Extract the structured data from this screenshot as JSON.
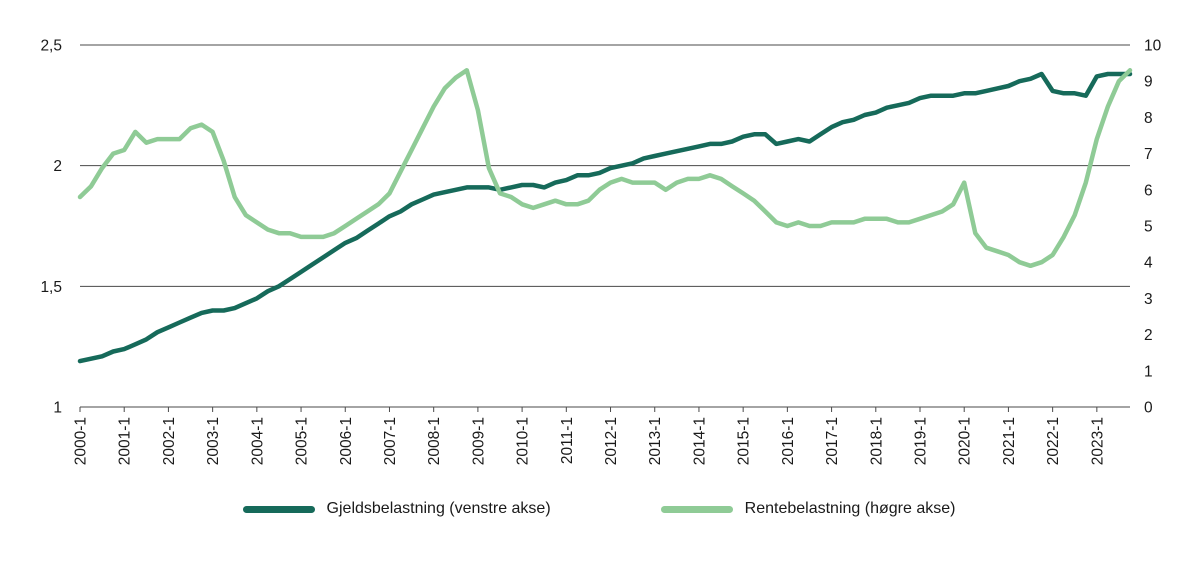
{
  "chart_data": {
    "type": "line",
    "title": "",
    "xlabel": "",
    "ylabel_left": "",
    "ylabel_right": "",
    "grid": "horizontal",
    "legend_position": "bottom-center",
    "text_color": "#1a1a1a",
    "grid_color": "#4a4a4a",
    "left_axis": {
      "range": [
        1,
        2.5
      ],
      "ticks": [
        {
          "value": 2.5,
          "label": "2,5"
        },
        {
          "value": 2.0,
          "label": "2"
        },
        {
          "value": 1.5,
          "label": "1,5"
        },
        {
          "value": 1.0,
          "label": "1"
        }
      ]
    },
    "right_axis": {
      "range": [
        0,
        10
      ],
      "ticks": [
        {
          "value": 10,
          "label": "10"
        },
        {
          "value": 9,
          "label": "9"
        },
        {
          "value": 8,
          "label": "8"
        },
        {
          "value": 7,
          "label": "7"
        },
        {
          "value": 6,
          "label": "6"
        },
        {
          "value": 5,
          "label": "5"
        },
        {
          "value": 4,
          "label": "4"
        },
        {
          "value": 3,
          "label": "3"
        },
        {
          "value": 2,
          "label": "2"
        },
        {
          "value": 1,
          "label": "1"
        },
        {
          "value": 0,
          "label": "0"
        }
      ]
    },
    "x_tick_labels": [
      "2000-1",
      "2001-1",
      "2002-1",
      "2003-1",
      "2004-1",
      "2005-1",
      "2006-1",
      "2007-1",
      "2008-1",
      "2009-1",
      "2010-1",
      "2011-1",
      "2012-1",
      "2013-1",
      "2014-1",
      "2015-1",
      "2016-1",
      "2017-1",
      "2018-1",
      "2019-1",
      "2020-1",
      "2021-1",
      "2022-1",
      "2023-1"
    ],
    "x_ticks_every_n_points": 4,
    "series": [
      {
        "name": "Gjeldsbelastning",
        "legend_label": "Gjeldsbelastning (venstre akse)",
        "axis": "left",
        "color": "#166a5a",
        "values": [
          1.19,
          1.2,
          1.21,
          1.23,
          1.24,
          1.26,
          1.28,
          1.31,
          1.33,
          1.35,
          1.37,
          1.39,
          1.4,
          1.4,
          1.41,
          1.43,
          1.45,
          1.48,
          1.5,
          1.53,
          1.56,
          1.59,
          1.62,
          1.65,
          1.68,
          1.7,
          1.73,
          1.76,
          1.79,
          1.81,
          1.84,
          1.86,
          1.88,
          1.89,
          1.9,
          1.91,
          1.91,
          1.91,
          1.9,
          1.91,
          1.92,
          1.92,
          1.91,
          1.93,
          1.94,
          1.96,
          1.96,
          1.97,
          1.99,
          2.0,
          2.01,
          2.03,
          2.04,
          2.05,
          2.06,
          2.07,
          2.08,
          2.09,
          2.09,
          2.1,
          2.12,
          2.13,
          2.13,
          2.09,
          2.1,
          2.11,
          2.1,
          2.13,
          2.16,
          2.18,
          2.19,
          2.21,
          2.22,
          2.24,
          2.25,
          2.26,
          2.28,
          2.29,
          2.29,
          2.29,
          2.3,
          2.3,
          2.31,
          2.32,
          2.33,
          2.35,
          2.36,
          2.38,
          2.31,
          2.3,
          2.3,
          2.29,
          2.37,
          2.38,
          2.38,
          2.38
        ]
      },
      {
        "name": "Rentebelastning",
        "legend_label": "Rentebelastning (høgre akse)",
        "axis": "right",
        "color": "#8fcb96",
        "values": [
          5.8,
          6.1,
          6.6,
          7.0,
          7.1,
          7.6,
          7.3,
          7.4,
          7.4,
          7.4,
          7.7,
          7.8,
          7.6,
          6.8,
          5.8,
          5.3,
          5.1,
          4.9,
          4.8,
          4.8,
          4.7,
          4.7,
          4.7,
          4.8,
          5.0,
          5.2,
          5.4,
          5.6,
          5.9,
          6.5,
          7.1,
          7.7,
          8.3,
          8.8,
          9.1,
          9.3,
          8.2,
          6.6,
          5.9,
          5.8,
          5.6,
          5.5,
          5.6,
          5.7,
          5.6,
          5.6,
          5.7,
          6.0,
          6.2,
          6.3,
          6.2,
          6.2,
          6.2,
          6.0,
          6.2,
          6.3,
          6.3,
          6.4,
          6.3,
          6.1,
          5.9,
          5.7,
          5.4,
          5.1,
          5.0,
          5.1,
          5.0,
          5.0,
          5.1,
          5.1,
          5.1,
          5.2,
          5.2,
          5.2,
          5.1,
          5.1,
          5.2,
          5.3,
          5.4,
          5.6,
          6.2,
          4.8,
          4.4,
          4.3,
          4.2,
          4.0,
          3.9,
          4.0,
          4.2,
          4.7,
          5.3,
          6.2,
          7.4,
          8.3,
          9.0,
          9.3
        ]
      }
    ]
  },
  "legend": {
    "items": [
      {
        "label": "Gjeldsbelastning (venstre akse)"
      },
      {
        "label": "Rentebelastning (høgre akse)"
      }
    ]
  }
}
